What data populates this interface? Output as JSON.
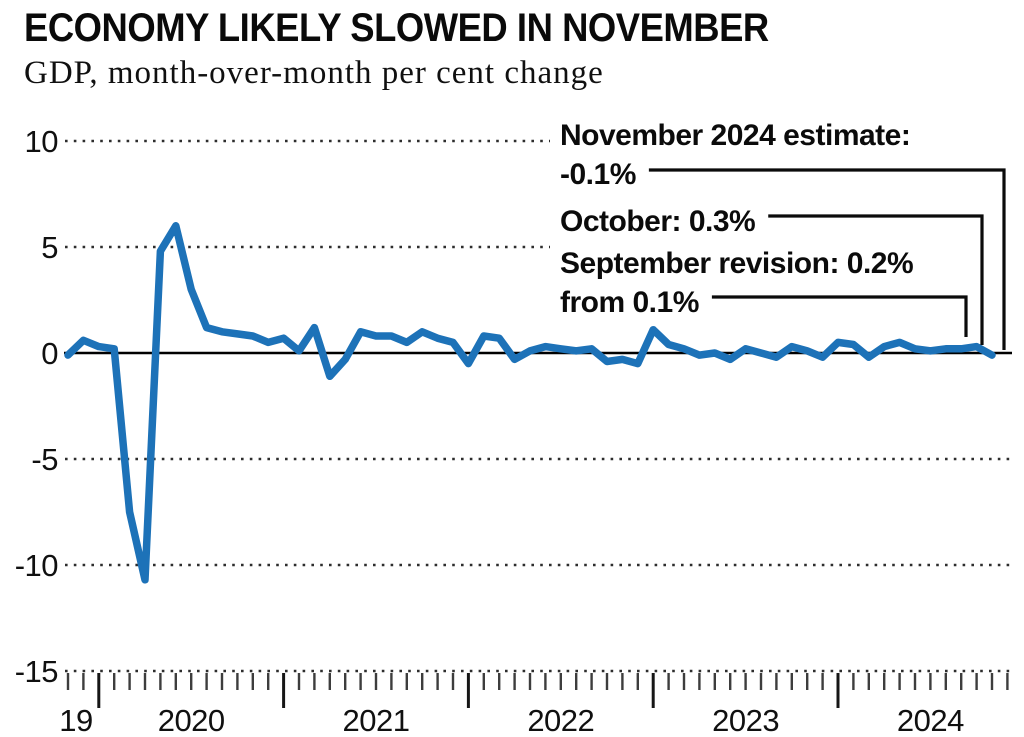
{
  "header": {
    "title": "ECONOMY LIKELY SLOWED IN NOVEMBER",
    "subtitle": "GDP, month-over-month per cent change"
  },
  "chart_data": {
    "type": "line",
    "series_name": "GDP month-over-month per cent change",
    "line_color": "#1d72b8",
    "ylim": [
      -15,
      10
    ],
    "yticks": [
      10,
      5,
      0,
      -5,
      -10,
      -15
    ],
    "grid": "dotted horizontal gridlines, solid zero line, monthly tick ruler at bottom",
    "legend_position": "none",
    "xtick_year_labels": [
      "19",
      "2020",
      "2021",
      "2022",
      "2023",
      "2024"
    ],
    "months": [
      "2019-11",
      "2019-12",
      "2020-01",
      "2020-02",
      "2020-03",
      "2020-04",
      "2020-05",
      "2020-06",
      "2020-07",
      "2020-08",
      "2020-09",
      "2020-10",
      "2020-11",
      "2020-12",
      "2021-01",
      "2021-02",
      "2021-03",
      "2021-04",
      "2021-05",
      "2021-06",
      "2021-07",
      "2021-08",
      "2021-09",
      "2021-10",
      "2021-11",
      "2021-12",
      "2022-01",
      "2022-02",
      "2022-03",
      "2022-04",
      "2022-05",
      "2022-06",
      "2022-07",
      "2022-08",
      "2022-09",
      "2022-10",
      "2022-11",
      "2022-12",
      "2023-01",
      "2023-02",
      "2023-03",
      "2023-04",
      "2023-05",
      "2023-06",
      "2023-07",
      "2023-08",
      "2023-09",
      "2023-10",
      "2023-11",
      "2023-12",
      "2024-01",
      "2024-02",
      "2024-03",
      "2024-04",
      "2024-05",
      "2024-06",
      "2024-07",
      "2024-08",
      "2024-09",
      "2024-10",
      "2024-11"
    ],
    "values": [
      -0.1,
      0.6,
      0.3,
      0.2,
      -7.5,
      -10.7,
      4.8,
      6.0,
      3.0,
      1.2,
      1.0,
      0.9,
      0.8,
      0.5,
      0.7,
      0.1,
      1.2,
      -1.1,
      -0.3,
      1.0,
      0.8,
      0.8,
      0.5,
      1.0,
      0.7,
      0.5,
      -0.5,
      0.8,
      0.7,
      -0.3,
      0.1,
      0.3,
      0.2,
      0.1,
      0.2,
      -0.4,
      -0.3,
      -0.5,
      1.1,
      0.4,
      0.2,
      -0.1,
      0.0,
      -0.3,
      0.2,
      0.0,
      -0.2,
      0.3,
      0.1,
      -0.2,
      0.5,
      0.4,
      -0.2,
      0.3,
      0.5,
      0.2,
      0.1,
      0.2,
      0.2,
      0.3,
      -0.1
    ],
    "annotations": [
      {
        "lines": [
          "November 2024 estimate:",
          "-0.1%"
        ],
        "target_month": "2024-11",
        "value": -0.1
      },
      {
        "lines": [
          "October: 0.3%"
        ],
        "target_month": "2024-10",
        "value": 0.3
      },
      {
        "lines": [
          "September revision: 0.2%",
          "from 0.1%"
        ],
        "target_month": "2024-09",
        "value": 0.2
      }
    ]
  }
}
